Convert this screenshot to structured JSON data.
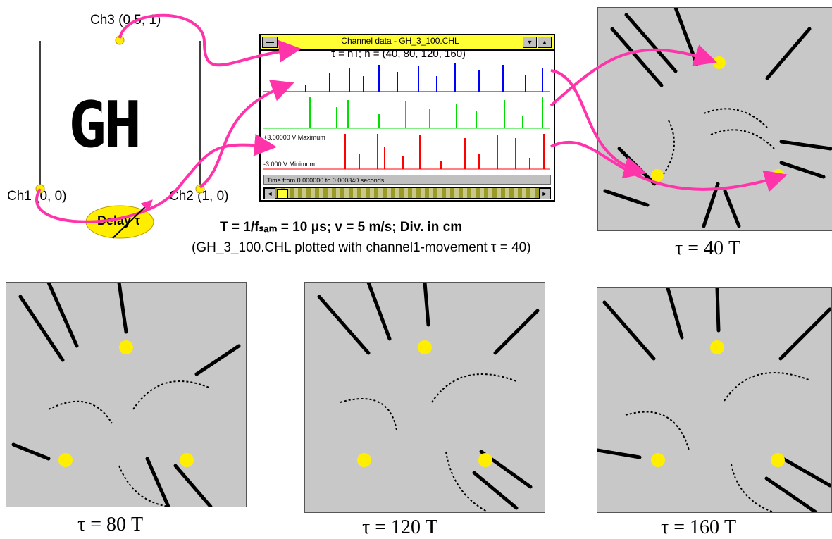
{
  "channels": {
    "ch1": "Ch1 (0, 0)",
    "ch2": "Ch2 (1, 0)",
    "ch3": "Ch3 (0.5, 1)",
    "letters": "GH",
    "delay": "Delay τ"
  },
  "window": {
    "title": "Channel data - GH_3_100.CHL",
    "annotation": "τ = nT; n = (40, 80, 120, 160)",
    "left_label_1": "..",
    "left_label_2": "+3.00000 V Maximum",
    "left_label_3": "-3.000 V Minimum",
    "info_bar": "Time from 0.000000 to 0.000340 seconds"
  },
  "caption": {
    "line1": "T = 1/fₛₐₘ = 10 μs;   v = 5 m/s; Div. in cm",
    "line2": "(GH_3_100.CHL plotted with channel1-movement τ = 40)"
  },
  "panels": [
    {
      "label": "τ = 40 T"
    },
    {
      "label": "τ = 80 T"
    },
    {
      "label": "τ = 120 T"
    },
    {
      "label": "τ = 160 T"
    }
  ],
  "colors": {
    "arrow": "#ff33aa",
    "blue_trace": "#0000ff",
    "green_trace": "#00dd00",
    "red_trace": "#ff0000",
    "sensor": "#ffee00",
    "panel_bg": "#c8c8c8"
  }
}
